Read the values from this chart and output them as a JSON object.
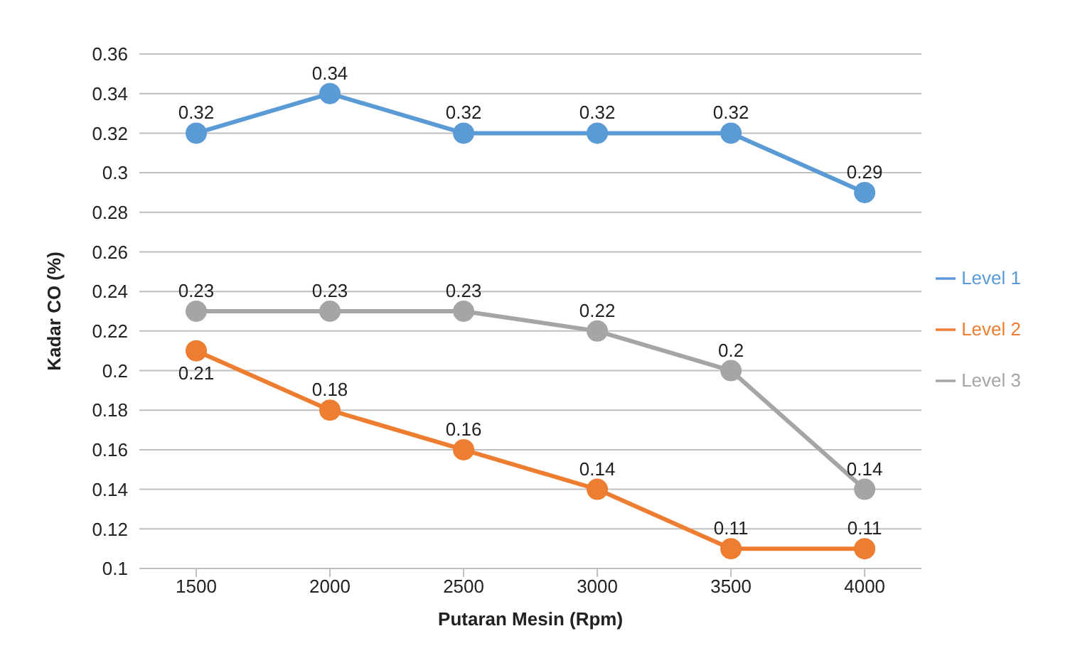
{
  "chart_data": {
    "type": "line",
    "xlabel": "Putaran Mesin (Rpm)",
    "ylabel": "Kadar CO (%)",
    "categories": [
      "1500",
      "2000",
      "2500",
      "3000",
      "3500",
      "4000"
    ],
    "series": [
      {
        "name": "Level 1",
        "color": "#5b9bd5",
        "values": [
          0.32,
          0.34,
          0.32,
          0.32,
          0.32,
          0.29
        ]
      },
      {
        "name": "Level 2",
        "color": "#ed7d31",
        "values": [
          0.21,
          0.18,
          0.16,
          0.14,
          0.11,
          0.11
        ]
      },
      {
        "name": "Level 3",
        "color": "#a5a5a5",
        "values": [
          0.23,
          0.23,
          0.23,
          0.22,
          0.2,
          0.14
        ]
      }
    ],
    "ylim": [
      0.1,
      0.36
    ],
    "yticks": [
      0.1,
      0.12,
      0.14,
      0.16,
      0.18,
      0.2,
      0.22,
      0.24,
      0.26,
      0.28,
      0.3,
      0.32,
      0.34,
      0.36
    ],
    "grid": "y",
    "legend": "right",
    "marker": "circle",
    "line_style": "solid",
    "data_labels": true
  }
}
